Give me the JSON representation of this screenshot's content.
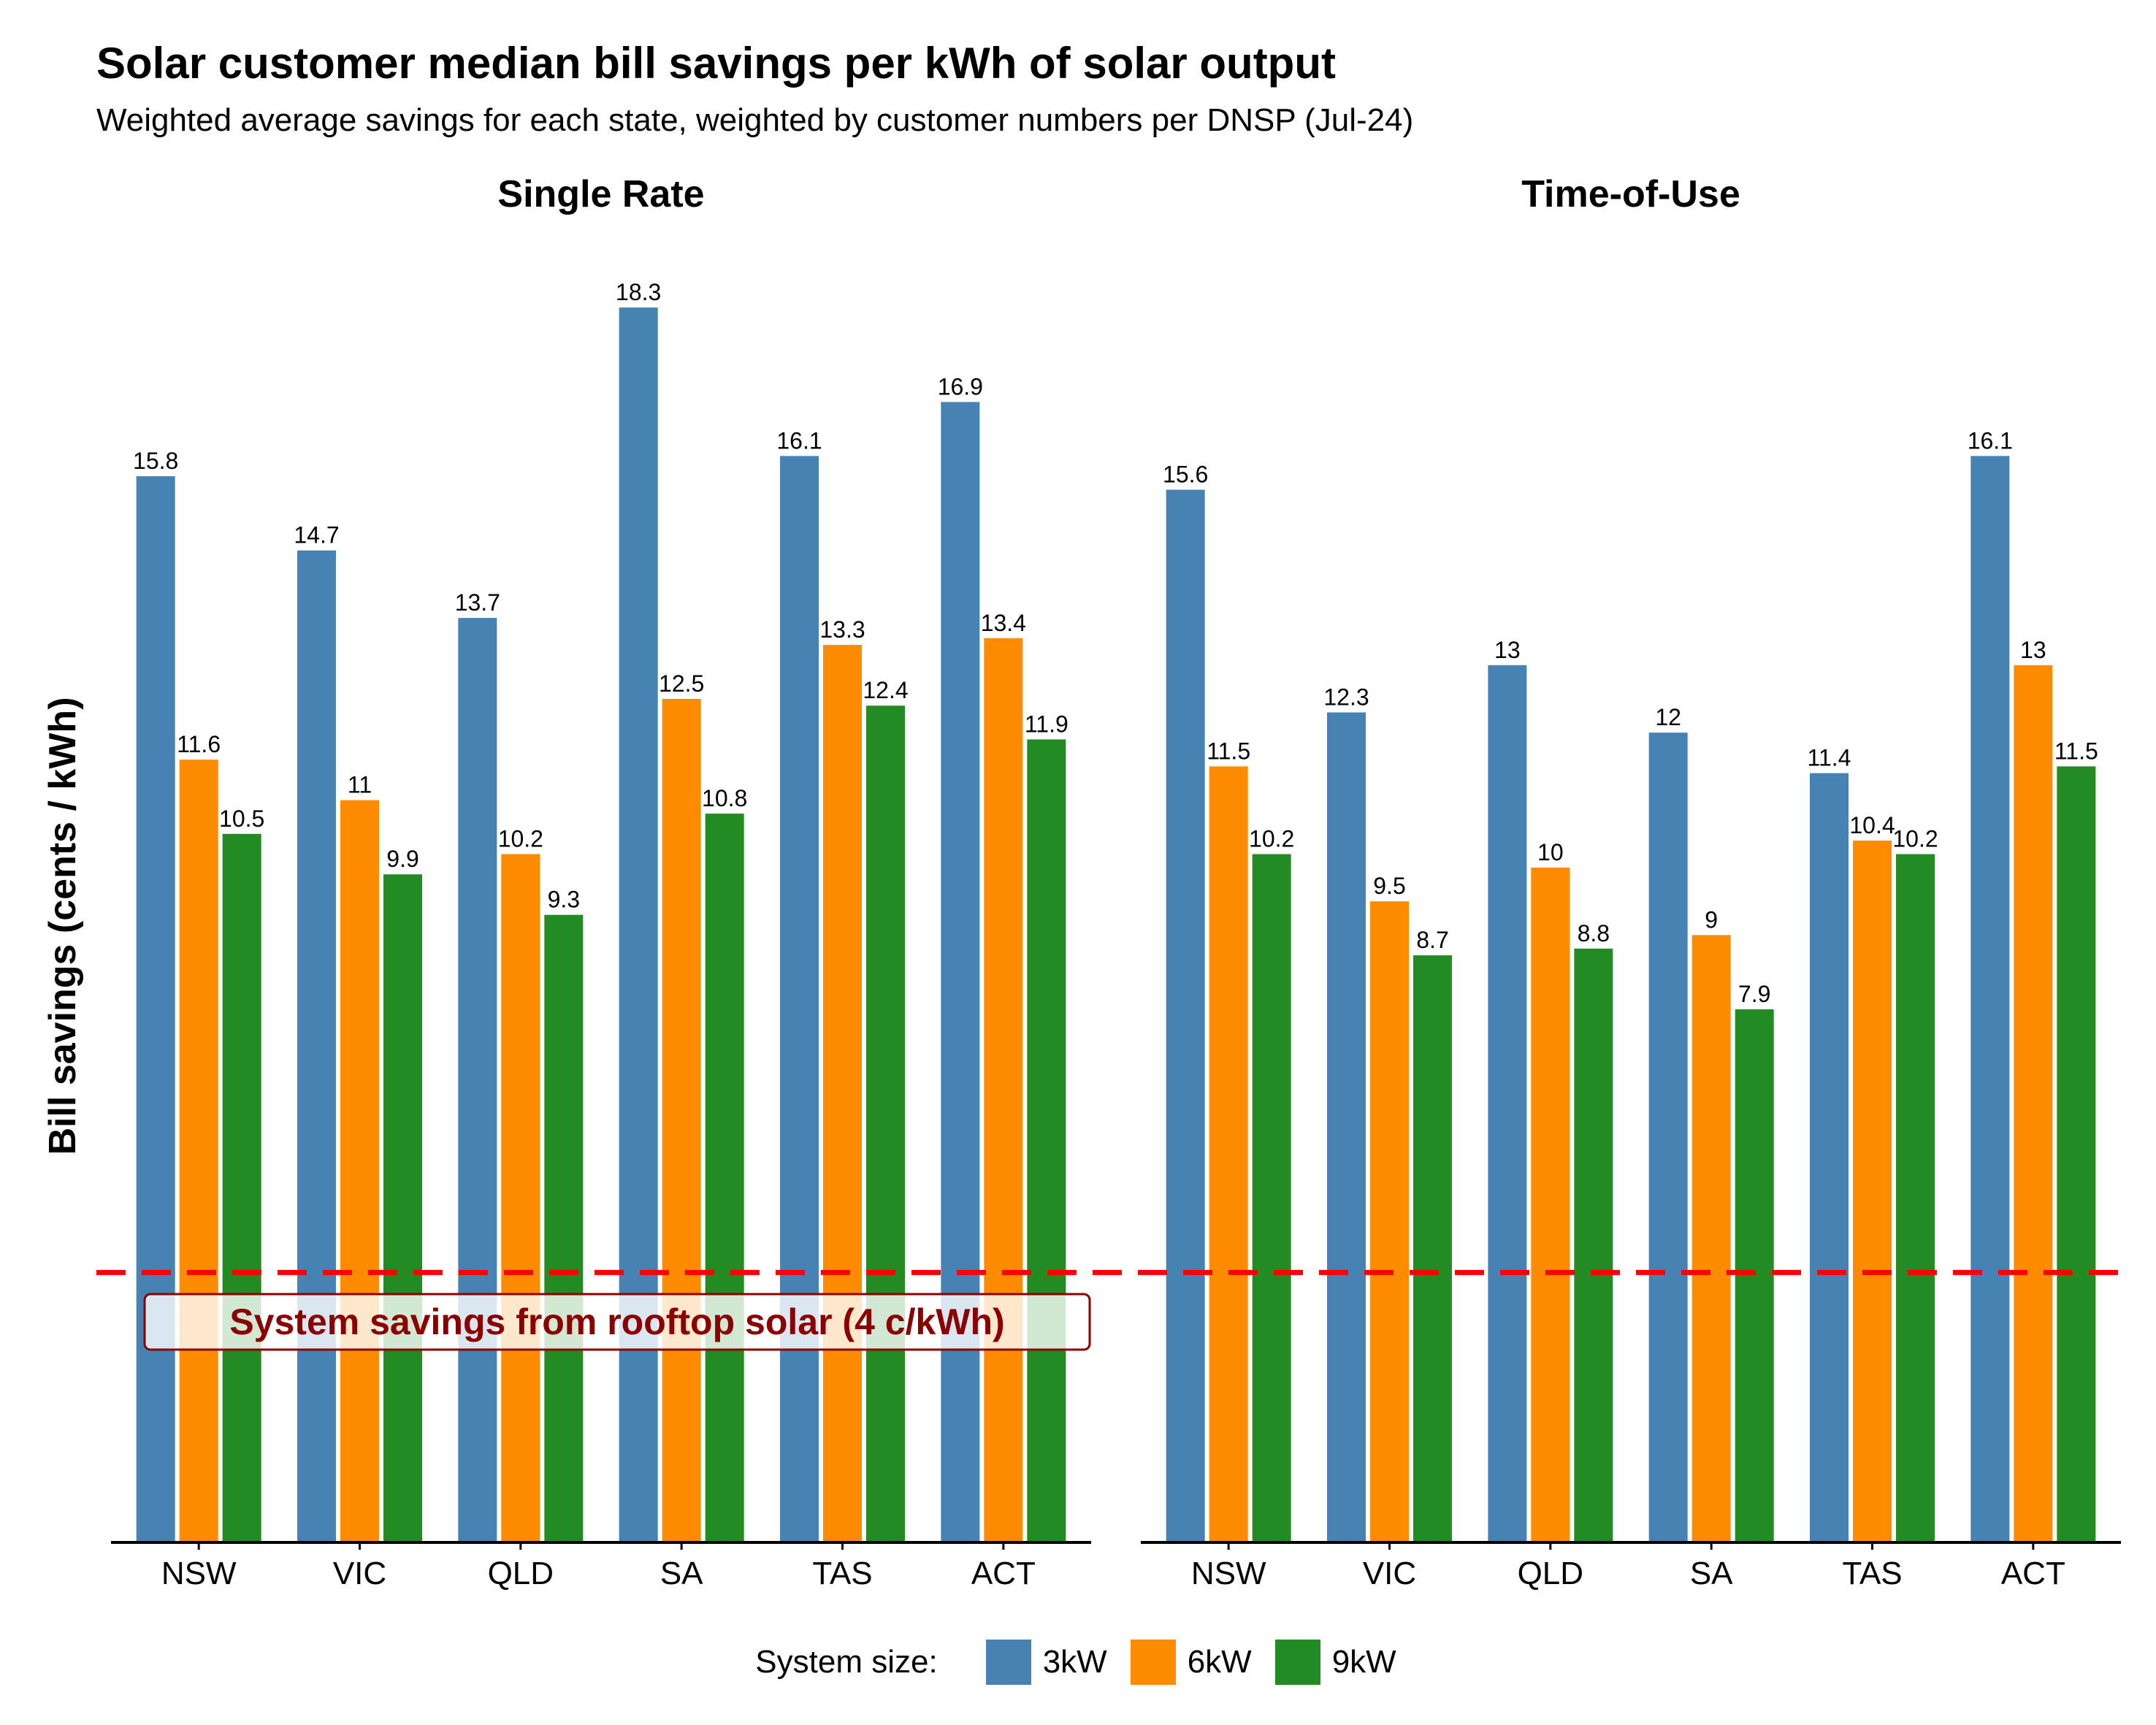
{
  "chart_data": {
    "type": "bar",
    "title": "Solar customer median bill savings per kWh of solar output",
    "subtitle": "Weighted average savings for each state, weighted by customer numbers per DNSP (Jul-24)",
    "ylabel": "Bill savings (cents / kWh)",
    "xlabel": "",
    "ylim": [
      0,
      19
    ],
    "grid": false,
    "categories": [
      "NSW",
      "VIC",
      "QLD",
      "SA",
      "TAS",
      "ACT"
    ],
    "legend": {
      "title": "System size:",
      "placement": "bottom",
      "entries": [
        "3kW",
        "6kW",
        "9kW"
      ]
    },
    "colors": {
      "3kW": "#4682B4",
      "6kW": "#FF8C00",
      "9kW": "#228B22",
      "reference": "#FF0000",
      "annotation": "#8B0000"
    },
    "panels": [
      {
        "name": "Single Rate",
        "series": [
          {
            "name": "3kW",
            "values": [
              15.8,
              14.7,
              13.7,
              18.3,
              16.1,
              16.9
            ]
          },
          {
            "name": "6kW",
            "values": [
              11.6,
              11,
              10.2,
              12.5,
              13.3,
              13.4
            ]
          },
          {
            "name": "9kW",
            "values": [
              10.5,
              9.9,
              9.3,
              10.8,
              12.4,
              11.9
            ]
          }
        ]
      },
      {
        "name": "Time-of-Use",
        "series": [
          {
            "name": "3kW",
            "values": [
              15.6,
              12.3,
              13,
              12,
              11.4,
              16.1
            ]
          },
          {
            "name": "6kW",
            "values": [
              11.5,
              9.5,
              10,
              9,
              10.4,
              13
            ]
          },
          {
            "name": "9kW",
            "values": [
              10.2,
              8.7,
              8.8,
              7.9,
              10.2,
              11.5
            ]
          }
        ]
      }
    ],
    "reference_line": {
      "value": 4,
      "style": "dashed",
      "label": "System savings from rooftop solar (4 c/kWh)"
    }
  }
}
